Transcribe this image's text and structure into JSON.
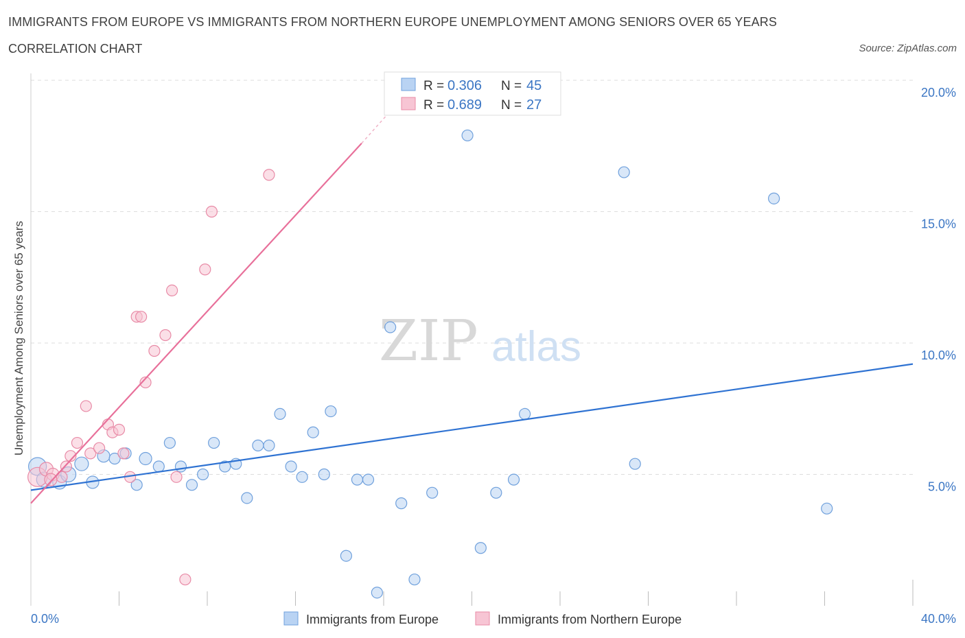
{
  "header": {
    "title": "IMMIGRANTS FROM EUROPE VS IMMIGRANTS FROM NORTHERN EUROPE UNEMPLOYMENT AMONG SENIORS OVER 65 YEARS",
    "subtitle": "CORRELATION CHART",
    "source": "Source: ZipAtlas.com"
  },
  "watermark": {
    "zip": "ZIP",
    "atlas": "atlas"
  },
  "colors": {
    "blue_fill": "#b9d3f3",
    "blue_stroke": "#6fa0dc",
    "blue_line": "#2e72d2",
    "pink_fill": "#f7c5d4",
    "pink_stroke": "#e88aa6",
    "pink_line": "#e8709a",
    "tick_text": "#3b76c4",
    "grid": "#dddddd"
  },
  "legend": {
    "r_label": "R =",
    "n_label": "N =",
    "entries": [
      {
        "series": "blue",
        "r": "0.306",
        "n": "45"
      },
      {
        "series": "pink",
        "r": "0.689",
        "n": "27"
      }
    ]
  },
  "chart_data": {
    "type": "scatter",
    "title": "IMMIGRANTS FROM EUROPE VS IMMIGRANTS FROM NORTHERN EUROPE UNEMPLOYMENT AMONG SENIORS OVER 65 YEARS",
    "xlabel": "",
    "ylabel": "Unemployment Among Seniors over 65 years",
    "xlim": [
      0,
      40
    ],
    "ylim": [
      0,
      20
    ],
    "x_tick_labels": [
      "0.0%",
      "40.0%"
    ],
    "y_ticks": [
      5,
      10,
      15,
      20
    ],
    "y_tick_labels": [
      "5.0%",
      "10.0%",
      "15.0%",
      "20.0%"
    ],
    "grid": true,
    "series": [
      {
        "name": "Immigrants from Europe",
        "color": "blue",
        "r": 0.306,
        "n": 45,
        "trend": {
          "x0": 0,
          "y0": 4.4,
          "x1": 40,
          "y1": 9.2
        },
        "points": [
          {
            "x": 0.3,
            "y": 5.3,
            "r": 13
          },
          {
            "x": 0.6,
            "y": 4.8,
            "r": 11
          },
          {
            "x": 1.3,
            "y": 4.7,
            "r": 10
          },
          {
            "x": 1.7,
            "y": 5.0,
            "r": 11
          },
          {
            "x": 2.3,
            "y": 5.4,
            "r": 10
          },
          {
            "x": 2.8,
            "y": 4.7,
            "r": 9
          },
          {
            "x": 3.3,
            "y": 5.7,
            "r": 9
          },
          {
            "x": 3.8,
            "y": 5.6,
            "r": 8
          },
          {
            "x": 4.3,
            "y": 5.8,
            "r": 8
          },
          {
            "x": 4.8,
            "y": 4.6,
            "r": 8
          },
          {
            "x": 5.2,
            "y": 5.6,
            "r": 9
          },
          {
            "x": 5.8,
            "y": 5.3,
            "r": 8
          },
          {
            "x": 6.3,
            "y": 6.2,
            "r": 8
          },
          {
            "x": 6.8,
            "y": 5.3,
            "r": 8
          },
          {
            "x": 7.3,
            "y": 4.6,
            "r": 8
          },
          {
            "x": 7.8,
            "y": 5.0,
            "r": 8
          },
          {
            "x": 8.3,
            "y": 6.2,
            "r": 8
          },
          {
            "x": 8.8,
            "y": 5.3,
            "r": 8
          },
          {
            "x": 9.3,
            "y": 5.4,
            "r": 8
          },
          {
            "x": 9.8,
            "y": 4.1,
            "r": 8
          },
          {
            "x": 10.3,
            "y": 6.1,
            "r": 8
          },
          {
            "x": 10.8,
            "y": 6.1,
            "r": 8
          },
          {
            "x": 11.3,
            "y": 7.3,
            "r": 8
          },
          {
            "x": 11.8,
            "y": 5.3,
            "r": 8
          },
          {
            "x": 12.3,
            "y": 4.9,
            "r": 8
          },
          {
            "x": 12.8,
            "y": 6.6,
            "r": 8
          },
          {
            "x": 13.3,
            "y": 5.0,
            "r": 8
          },
          {
            "x": 13.6,
            "y": 7.4,
            "r": 8
          },
          {
            "x": 14.3,
            "y": 1.9,
            "r": 8
          },
          {
            "x": 14.8,
            "y": 4.8,
            "r": 8
          },
          {
            "x": 15.3,
            "y": 4.8,
            "r": 8
          },
          {
            "x": 15.7,
            "y": 0.5,
            "r": 8
          },
          {
            "x": 16.3,
            "y": 10.6,
            "r": 8
          },
          {
            "x": 16.8,
            "y": 3.9,
            "r": 8
          },
          {
            "x": 17.4,
            "y": 1.0,
            "r": 8
          },
          {
            "x": 18.2,
            "y": 4.3,
            "r": 8
          },
          {
            "x": 19.8,
            "y": 17.9,
            "r": 8
          },
          {
            "x": 20.4,
            "y": 2.2,
            "r": 8
          },
          {
            "x": 21.1,
            "y": 4.3,
            "r": 8
          },
          {
            "x": 21.9,
            "y": 4.8,
            "r": 8
          },
          {
            "x": 22.4,
            "y": 7.3,
            "r": 8
          },
          {
            "x": 26.9,
            "y": 16.5,
            "r": 8
          },
          {
            "x": 27.4,
            "y": 5.4,
            "r": 8
          },
          {
            "x": 33.7,
            "y": 15.5,
            "r": 8
          },
          {
            "x": 36.1,
            "y": 3.7,
            "r": 8
          }
        ]
      },
      {
        "name": "Immigrants from Northern Europe",
        "color": "pink",
        "r": 0.689,
        "n": 27,
        "trend": {
          "x0": 0,
          "y0": 3.9,
          "x1": 15.0,
          "y1": 17.6,
          "dash_to_x": 16.7,
          "dash_to_y": 19.2
        },
        "points": [
          {
            "x": 0.3,
            "y": 4.9,
            "r": 14
          },
          {
            "x": 0.7,
            "y": 5.2,
            "r": 10
          },
          {
            "x": 1.0,
            "y": 5.0,
            "r": 9
          },
          {
            "x": 1.4,
            "y": 4.9,
            "r": 8
          },
          {
            "x": 1.6,
            "y": 5.3,
            "r": 8
          },
          {
            "x": 1.8,
            "y": 5.7,
            "r": 8
          },
          {
            "x": 2.1,
            "y": 6.2,
            "r": 8
          },
          {
            "x": 2.5,
            "y": 7.6,
            "r": 8
          },
          {
            "x": 2.7,
            "y": 5.8,
            "r": 8
          },
          {
            "x": 3.1,
            "y": 6.0,
            "r": 8
          },
          {
            "x": 3.5,
            "y": 6.9,
            "r": 8
          },
          {
            "x": 3.7,
            "y": 6.6,
            "r": 8
          },
          {
            "x": 4.0,
            "y": 6.7,
            "r": 8
          },
          {
            "x": 4.2,
            "y": 5.8,
            "r": 8
          },
          {
            "x": 4.5,
            "y": 4.9,
            "r": 8
          },
          {
            "x": 4.8,
            "y": 11.0,
            "r": 8
          },
          {
            "x": 5.0,
            "y": 11.0,
            "r": 8
          },
          {
            "x": 5.2,
            "y": 8.5,
            "r": 8
          },
          {
            "x": 5.6,
            "y": 9.7,
            "r": 8
          },
          {
            "x": 6.1,
            "y": 10.3,
            "r": 8
          },
          {
            "x": 6.4,
            "y": 12.0,
            "r": 8
          },
          {
            "x": 6.6,
            "y": 4.9,
            "r": 8
          },
          {
            "x": 7.0,
            "y": 1.0,
            "r": 8
          },
          {
            "x": 7.9,
            "y": 12.8,
            "r": 8
          },
          {
            "x": 8.2,
            "y": 15.0,
            "r": 8
          },
          {
            "x": 10.8,
            "y": 16.4,
            "r": 8
          },
          {
            "x": 0.9,
            "y": 4.8,
            "r": 9
          }
        ]
      }
    ]
  }
}
